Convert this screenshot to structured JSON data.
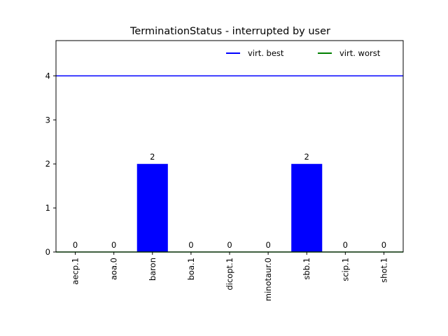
{
  "chart_data": {
    "type": "bar",
    "title": "TerminationStatus - interrupted by user",
    "xlabel": "",
    "ylabel": "",
    "categories": [
      "aecp.1",
      "aoa.0",
      "baron",
      "boa.1",
      "dicopt.1",
      "minotaur.0",
      "sbb.1",
      "scip.1",
      "shot.1"
    ],
    "values": [
      0,
      0,
      2,
      0,
      0,
      0,
      2,
      0,
      0
    ],
    "data_labels": [
      "0",
      "0",
      "2",
      "0",
      "0",
      "0",
      "2",
      "0",
      "0"
    ],
    "ylim": [
      0,
      4.8
    ],
    "yticks": [
      0,
      1,
      2,
      3,
      4
    ],
    "ytick_labels": [
      "0",
      "1",
      "2",
      "3",
      "4"
    ],
    "bar_color": "#0000ff",
    "reference_lines": [
      {
        "name": "virt. best",
        "y": 4,
        "color": "#0000ff"
      },
      {
        "name": "virt. worst",
        "y": 0,
        "color": "#008000"
      }
    ],
    "legend": {
      "placement": "top-right",
      "entries": [
        {
          "label": "virt. best",
          "color": "#0000ff"
        },
        {
          "label": "virt. worst",
          "color": "#008000"
        }
      ]
    },
    "grid": false
  }
}
